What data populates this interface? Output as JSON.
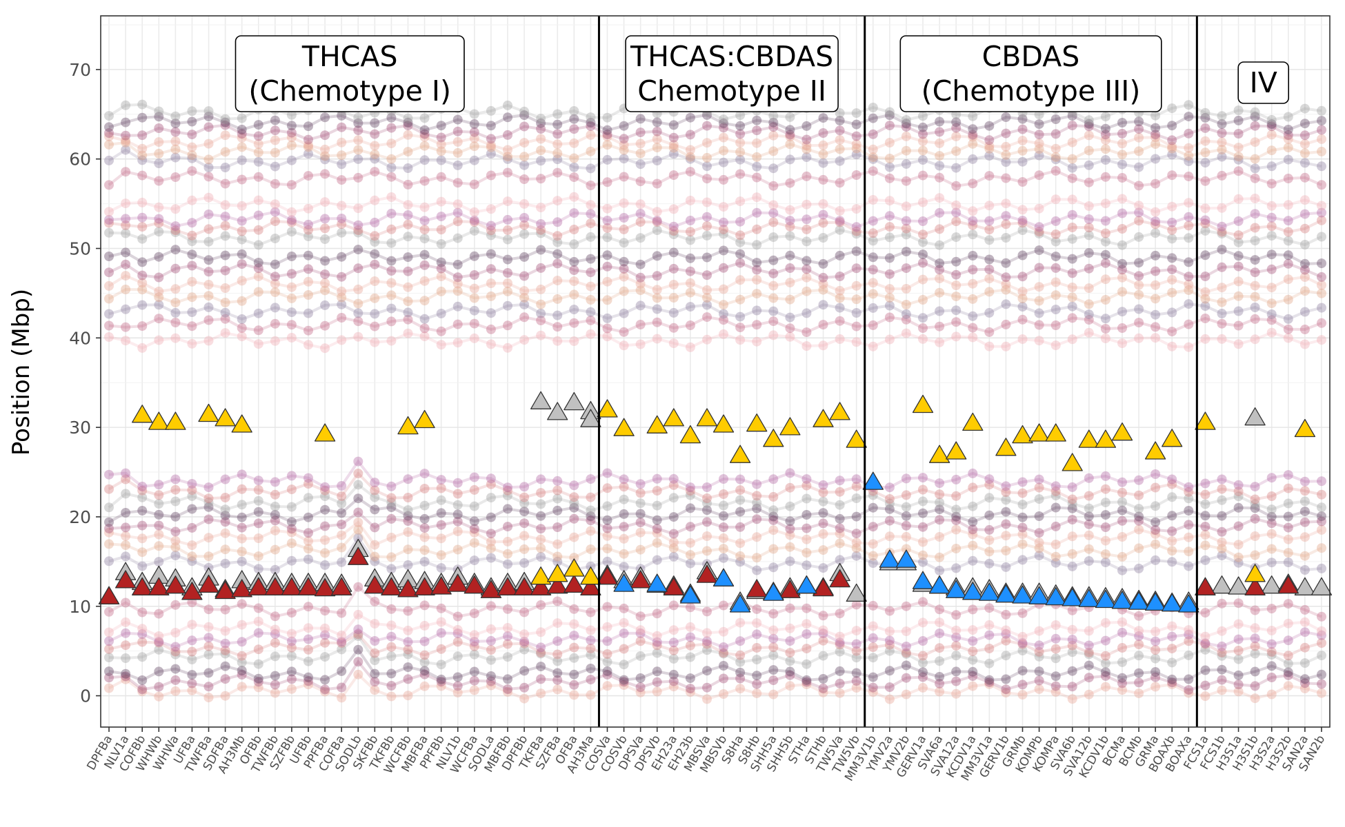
{
  "chart_data": {
    "type": "line",
    "title": "",
    "xlabel": "",
    "ylabel": "Position (Mbp)",
    "ylim": [
      -3.5,
      76
    ],
    "yticks": [
      0,
      10,
      20,
      30,
      40,
      50,
      60,
      70
    ],
    "grid": true,
    "x": [
      "DPFBa",
      "NLV1a",
      "COFBb",
      "WHWb",
      "WHWa",
      "UFBa",
      "TWFBa",
      "SDFBa",
      "AH3Mb",
      "OFBb",
      "TWFBb",
      "SZFBb",
      "UFBb",
      "PPFBa",
      "COFBa",
      "SODLb",
      "SKFBb",
      "TKFBb",
      "WCFBb",
      "MBFBa",
      "PPFBb",
      "NLV1b",
      "WCFBa",
      "SODLa",
      "MBFBb",
      "DPFBb",
      "TKFBa",
      "SZFBa",
      "OFBa",
      "AH3Ma",
      "COSVa",
      "COSVb",
      "DPSVa",
      "DPSVb",
      "EH23a",
      "EH23b",
      "MBSVa",
      "MBSVb",
      "S8Ha",
      "S8Hb",
      "SHH5a",
      "SHH5b",
      "STHa",
      "STHb",
      "TW5Va",
      "TW5Vb",
      "MM3V1b",
      "YMV2a",
      "YMV2b",
      "GERV1a",
      "SVA6a",
      "SVA12a",
      "KCDV1a",
      "MM3V1a",
      "GERV1b",
      "GRMb",
      "KOMPb",
      "KOMPa",
      "SVA6b",
      "SVA12b",
      "KCDV1b",
      "BCMa",
      "BCMb",
      "GRMa",
      "BOAXb",
      "BOAXa",
      "FCS1a",
      "FCS1b",
      "H3S1a",
      "H3S1b",
      "H3S2a",
      "H3S2b",
      "SAN2a",
      "SAN2b"
    ],
    "x_tick_labels_shown": [
      "DPFBa",
      "NLV1a",
      "COFBb",
      "WHWb",
      "WHWa",
      "UFBa",
      "TWFBa",
      "SDFBa",
      "AH3Mb",
      "OFBb",
      "TWFBb",
      "SZFBb",
      "UFBb",
      "PPFBa",
      "COFBa",
      "SODLb",
      "SKFBb",
      "TKFBb",
      "WCFBb",
      "MBFBa",
      "PPFBb",
      "NLV1b",
      "WCFBa",
      "SODLa",
      "MBFBb",
      "DPFBb",
      "TKFBa",
      "SZFBa",
      "OFBa",
      "AH3Ma",
      "COSVa",
      "COSVb",
      "DPSVa",
      "DPSVb",
      "EH23a",
      "EH23b",
      "MBSVa",
      "MBSVb",
      "S8Ha",
      "S8Hb",
      "SHH5a",
      "SHH5b",
      "STHa",
      "STHb",
      "TW5Va",
      "TW5Vb",
      "MM3V1b",
      "YMV2a",
      "YMV2b",
      "GERV1a",
      "SVA6a",
      "SVA12a",
      "KCDV1a",
      "MM3V1a",
      "GERV1b",
      "GRMb",
      "KOMPb",
      "KOMPa",
      "SVA6b",
      "SVA12b",
      "KCDV1b",
      "BCMa",
      "BCMb",
      "GRMa",
      "BOAXb",
      "BOAXa",
      "FCS1a",
      "FCS1b",
      "H3S1a",
      "H3S1b",
      "H3S2a",
      "H3S2b",
      "SAN2a",
      "SAN2b"
    ],
    "panels": [
      {
        "label_lines": [
          "THCAS",
          "(Chemotype I)"
        ],
        "start": 0,
        "end": 29
      },
      {
        "label_lines": [
          "THCAS:CBDAS",
          "Chemotype II"
        ],
        "start": 30,
        "end": 45
      },
      {
        "label_lines": [
          "CBDAS",
          "(Chemotype III)"
        ],
        "start": 46,
        "end": 65
      },
      {
        "label_lines": [
          "IV"
        ],
        "start": 66,
        "end": 73
      }
    ],
    "marker_colors": {
      "thcas": "#ffcc00",
      "cbdas": "#1e90ff",
      "cbdas_like": "#b22222",
      "other": "#c0c0c0"
    },
    "background_track_colors": [
      "#e8a090",
      "#a04870",
      "#5a3a5a",
      "#9a9a9a",
      "#d47a7a",
      "#b060a0",
      "#f0a8b0",
      "#c06080",
      "#8a7a9a",
      "#e0a080"
    ],
    "background_track_baselines": [
      0.5,
      1.5,
      2.5,
      4.3,
      5.3,
      6.3,
      7.5,
      9.7,
      14.8,
      16.2,
      17.7,
      19.0,
      20.3,
      21.6,
      22.8,
      24.0,
      39.7,
      41.5,
      43.0,
      44.6,
      46.0,
      47.5,
      49.0,
      51.2,
      52.3,
      53.3,
      54.9,
      57.8,
      59.7,
      60.8,
      61.9,
      63.0,
      64.1,
      65.2
    ],
    "series": [
      {
        "name": "THCAS",
        "marker": "triangle",
        "color": "#ffcc00",
        "points": [
          [
            2,
            31.3
          ],
          [
            3,
            30.5
          ],
          [
            4,
            30.5
          ],
          [
            6,
            31.4
          ],
          [
            7,
            30.9
          ],
          [
            8,
            30.2
          ],
          [
            13,
            29.2
          ],
          [
            18,
            30.0
          ],
          [
            19,
            30.7
          ],
          [
            26,
            13.2
          ],
          [
            27,
            13.5
          ],
          [
            28,
            14.1
          ],
          [
            29,
            13.2
          ],
          [
            30,
            31.9
          ],
          [
            31,
            29.8
          ],
          [
            33,
            30.1
          ],
          [
            34,
            30.9
          ],
          [
            35,
            29.0
          ],
          [
            36,
            30.9
          ],
          [
            37,
            30.2
          ],
          [
            38,
            26.8
          ],
          [
            39,
            30.3
          ],
          [
            40,
            28.6
          ],
          [
            41,
            29.9
          ],
          [
            43,
            30.8
          ],
          [
            44,
            31.6
          ],
          [
            45,
            28.5
          ],
          [
            49,
            32.4
          ],
          [
            50,
            26.8
          ],
          [
            51,
            27.2
          ],
          [
            52,
            30.4
          ],
          [
            54,
            27.6
          ],
          [
            55,
            29.0
          ],
          [
            56,
            29.2
          ],
          [
            57,
            29.2
          ],
          [
            58,
            25.9
          ],
          [
            59,
            28.5
          ],
          [
            60,
            28.5
          ],
          [
            61,
            29.3
          ],
          [
            63,
            27.2
          ],
          [
            64,
            28.6
          ],
          [
            66,
            30.5
          ],
          [
            69,
            13.5
          ],
          [
            72,
            29.7
          ]
        ]
      },
      {
        "name": "CBDAS",
        "marker": "triangle",
        "color": "#1e90ff",
        "points": [
          [
            31,
            12.4
          ],
          [
            33,
            12.4
          ],
          [
            35,
            11.1
          ],
          [
            37,
            13.0
          ],
          [
            38,
            10.1
          ],
          [
            40,
            11.4
          ],
          [
            42,
            12.2
          ],
          [
            46,
            23.8
          ],
          [
            47,
            15.1
          ],
          [
            48,
            15.1
          ],
          [
            49,
            12.7
          ],
          [
            50,
            12.2
          ],
          [
            51,
            11.7
          ],
          [
            52,
            11.5
          ],
          [
            53,
            11.4
          ],
          [
            54,
            11.2
          ],
          [
            55,
            11.1
          ],
          [
            56,
            11.0
          ],
          [
            57,
            10.9
          ],
          [
            58,
            10.8
          ],
          [
            59,
            10.7
          ],
          [
            60,
            10.6
          ],
          [
            61,
            10.5
          ],
          [
            62,
            10.4
          ],
          [
            63,
            10.3
          ],
          [
            64,
            10.2
          ],
          [
            65,
            10.1
          ]
        ]
      },
      {
        "name": "CBDAS-like (red)",
        "marker": "triangle",
        "color": "#b22222",
        "points": [
          [
            0,
            11.0
          ],
          [
            1,
            12.8
          ],
          [
            2,
            12.0
          ],
          [
            3,
            12.0
          ],
          [
            4,
            12.2
          ],
          [
            5,
            11.5
          ],
          [
            6,
            12.3
          ],
          [
            7,
            11.6
          ],
          [
            8,
            11.8
          ],
          [
            9,
            12.0
          ],
          [
            10,
            12.0
          ],
          [
            11,
            12.0
          ],
          [
            12,
            12.0
          ],
          [
            13,
            11.9
          ],
          [
            14,
            12.0
          ],
          [
            15,
            15.4
          ],
          [
            16,
            12.2
          ],
          [
            17,
            12.0
          ],
          [
            18,
            11.8
          ],
          [
            19,
            12.0
          ],
          [
            20,
            12.1
          ],
          [
            21,
            12.4
          ],
          [
            22,
            12.2
          ],
          [
            23,
            11.7
          ],
          [
            24,
            12.0
          ],
          [
            25,
            12.0
          ],
          [
            26,
            12.0
          ],
          [
            27,
            12.2
          ],
          [
            28,
            12.3
          ],
          [
            29,
            12.0
          ],
          [
            30,
            13.2
          ],
          [
            32,
            12.8
          ],
          [
            34,
            12.0
          ],
          [
            36,
            13.4
          ],
          [
            39,
            11.8
          ],
          [
            41,
            11.7
          ],
          [
            43,
            11.9
          ],
          [
            44,
            12.9
          ],
          [
            66,
            12.0
          ],
          [
            69,
            12.0
          ],
          [
            71,
            12.2
          ]
        ]
      },
      {
        "name": "Other (gray)",
        "marker": "triangle",
        "color": "#c0c0c0",
        "points": [
          [
            0,
            11.0
          ],
          [
            1,
            13.7
          ],
          [
            2,
            12.6
          ],
          [
            3,
            13.3
          ],
          [
            4,
            13.0
          ],
          [
            5,
            12.0
          ],
          [
            6,
            13.1
          ],
          [
            7,
            11.8
          ],
          [
            8,
            12.8
          ],
          [
            9,
            12.6
          ],
          [
            10,
            12.6
          ],
          [
            11,
            12.5
          ],
          [
            12,
            12.5
          ],
          [
            13,
            12.5
          ],
          [
            14,
            12.4
          ],
          [
            15,
            16.3
          ],
          [
            16,
            13.0
          ],
          [
            17,
            12.6
          ],
          [
            18,
            12.9
          ],
          [
            19,
            12.7
          ],
          [
            20,
            12.5
          ],
          [
            21,
            13.2
          ],
          [
            22,
            12.5
          ],
          [
            23,
            12.0
          ],
          [
            24,
            12.5
          ],
          [
            25,
            12.6
          ],
          [
            26,
            32.8
          ],
          [
            27,
            31.6
          ],
          [
            28,
            32.7
          ],
          [
            29,
            31.7
          ],
          [
            29,
            30.8
          ],
          [
            30,
            13.4
          ],
          [
            31,
            12.8
          ],
          [
            32,
            13.2
          ],
          [
            33,
            12.3
          ],
          [
            34,
            12.2
          ],
          [
            35,
            11.3
          ],
          [
            36,
            13.8
          ],
          [
            37,
            13.0
          ],
          [
            38,
            10.4
          ],
          [
            39,
            11.6
          ],
          [
            40,
            11.5
          ],
          [
            41,
            12.0
          ],
          [
            42,
            12.2
          ],
          [
            43,
            12.0
          ],
          [
            44,
            13.6
          ],
          [
            45,
            11.3
          ],
          [
            47,
            14.8
          ],
          [
            48,
            14.8
          ],
          [
            49,
            12.4
          ],
          [
            50,
            12.2
          ],
          [
            51,
            12.0
          ],
          [
            52,
            12.0
          ],
          [
            53,
            11.8
          ],
          [
            54,
            11.4
          ],
          [
            55,
            11.4
          ],
          [
            56,
            11.4
          ],
          [
            57,
            11.2
          ],
          [
            58,
            11.0
          ],
          [
            59,
            11.0
          ],
          [
            60,
            10.9
          ],
          [
            61,
            10.8
          ],
          [
            62,
            10.6
          ],
          [
            63,
            10.5
          ],
          [
            64,
            10.3
          ],
          [
            65,
            10.4
          ],
          [
            66,
            12.0
          ],
          [
            67,
            12.2
          ],
          [
            68,
            12.1
          ],
          [
            69,
            31.0
          ],
          [
            70,
            12.2
          ],
          [
            71,
            12.4
          ],
          [
            72,
            12.0
          ],
          [
            73,
            12.0
          ]
        ]
      }
    ]
  }
}
